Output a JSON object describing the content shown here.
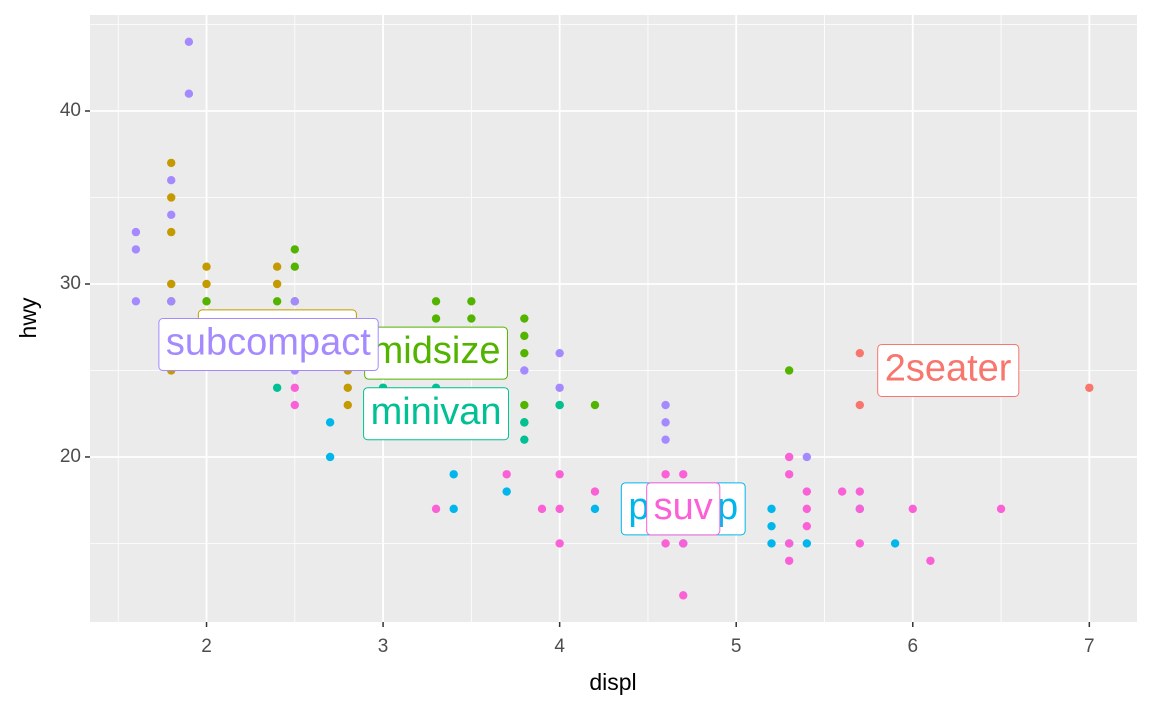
{
  "chart_data": {
    "type": "scatter",
    "x_label": "displ",
    "y_label": "hwy",
    "xlim": [
      1.34,
      7.27
    ],
    "ylim": [
      10.46,
      45.55
    ],
    "xticks": [
      2,
      3,
      4,
      5,
      6,
      7
    ],
    "yticks": [
      20,
      30,
      40
    ],
    "grid": true,
    "series": [
      {
        "name": "2seater",
        "color": "#F8766D",
        "x": [
          5.7,
          5.7,
          6.2,
          6.2,
          7.0
        ],
        "y": [
          26,
          23,
          26,
          25,
          24
        ]
      },
      {
        "name": "compact",
        "color": "#C49A00",
        "x": [
          1.8,
          1.8,
          1.8,
          1.8,
          1.8,
          1.8,
          2.0,
          2.0,
          2.0,
          2.2,
          2.4,
          2.4,
          2.4,
          2.4,
          2.8,
          2.8,
          2.8,
          3.0,
          3.1,
          3.3,
          2.5
        ],
        "y": [
          37,
          35,
          33,
          30,
          26,
          25,
          31,
          30,
          29,
          27,
          31,
          30,
          27,
          26,
          25,
          24,
          23,
          26,
          27,
          27,
          28
        ]
      },
      {
        "name": "midsize",
        "color": "#53B400",
        "x": [
          1.8,
          2.0,
          2.0,
          2.4,
          2.4,
          2.5,
          2.5,
          2.5,
          2.5,
          2.8,
          3.0,
          3.0,
          3.1,
          3.1,
          3.1,
          3.3,
          3.5,
          3.5,
          3.5,
          3.5,
          3.5,
          3.6,
          3.8,
          3.8,
          3.8,
          3.8,
          3.8,
          4.0,
          4.2,
          5.3,
          3.3
        ],
        "y": [
          29,
          28,
          29,
          29,
          26,
          32,
          31,
          29,
          26,
          26,
          24,
          25,
          26,
          27,
          25,
          28,
          29,
          28,
          26,
          25,
          27,
          26,
          28,
          27,
          26,
          23,
          22,
          23,
          23,
          25,
          29
        ]
      },
      {
        "name": "minivan",
        "color": "#00C094",
        "x": [
          2.4,
          3.0,
          3.3,
          3.3,
          3.8,
          3.8,
          4.0,
          3.3
        ],
        "y": [
          24,
          24,
          24,
          22,
          22,
          21,
          23,
          22
        ]
      },
      {
        "name": "pickup",
        "color": "#00B6EB",
        "x": [
          2.7,
          2.7,
          3.4,
          3.4,
          3.7,
          4.2,
          4.6,
          4.6,
          4.7,
          4.7,
          4.7,
          5.2,
          5.2,
          5.2,
          5.3,
          5.4,
          5.7,
          5.9
        ],
        "y": [
          20,
          22,
          19,
          17,
          18,
          17,
          17,
          16,
          17,
          16,
          15,
          17,
          16,
          15,
          15,
          15,
          17,
          15
        ]
      },
      {
        "name": "subcompact",
        "color": "#A58AFF",
        "x": [
          1.6,
          1.6,
          1.6,
          1.8,
          1.8,
          1.8,
          1.9,
          1.9,
          2.0,
          2.0,
          2.2,
          2.5,
          2.5,
          2.5,
          2.5,
          3.8,
          4.0,
          4.0,
          4.6,
          4.6,
          4.6,
          5.4
        ],
        "y": [
          33,
          32,
          29,
          36,
          34,
          29,
          44,
          41,
          27,
          26,
          26,
          29,
          27,
          26,
          25,
          25,
          26,
          24,
          23,
          22,
          21,
          20
        ]
      },
      {
        "name": "suv",
        "color": "#FB61D7",
        "x": [
          2.5,
          2.5,
          3.0,
          3.3,
          3.7,
          3.9,
          4.0,
          4.0,
          4.0,
          4.2,
          4.4,
          4.6,
          4.6,
          4.7,
          4.7,
          4.7,
          4.7,
          5.0,
          5.3,
          5.3,
          5.3,
          5.3,
          5.4,
          5.4,
          5.4,
          5.6,
          5.7,
          5.7,
          5.7,
          6.0,
          6.1,
          6.5
        ],
        "y": [
          24,
          23,
          22,
          17,
          19,
          17,
          19,
          17,
          15,
          18,
          18,
          19,
          15,
          19,
          17,
          15,
          12,
          17,
          20,
          19,
          15,
          14,
          18,
          17,
          16,
          18,
          18,
          17,
          15,
          17,
          14,
          17
        ]
      }
    ]
  }
}
